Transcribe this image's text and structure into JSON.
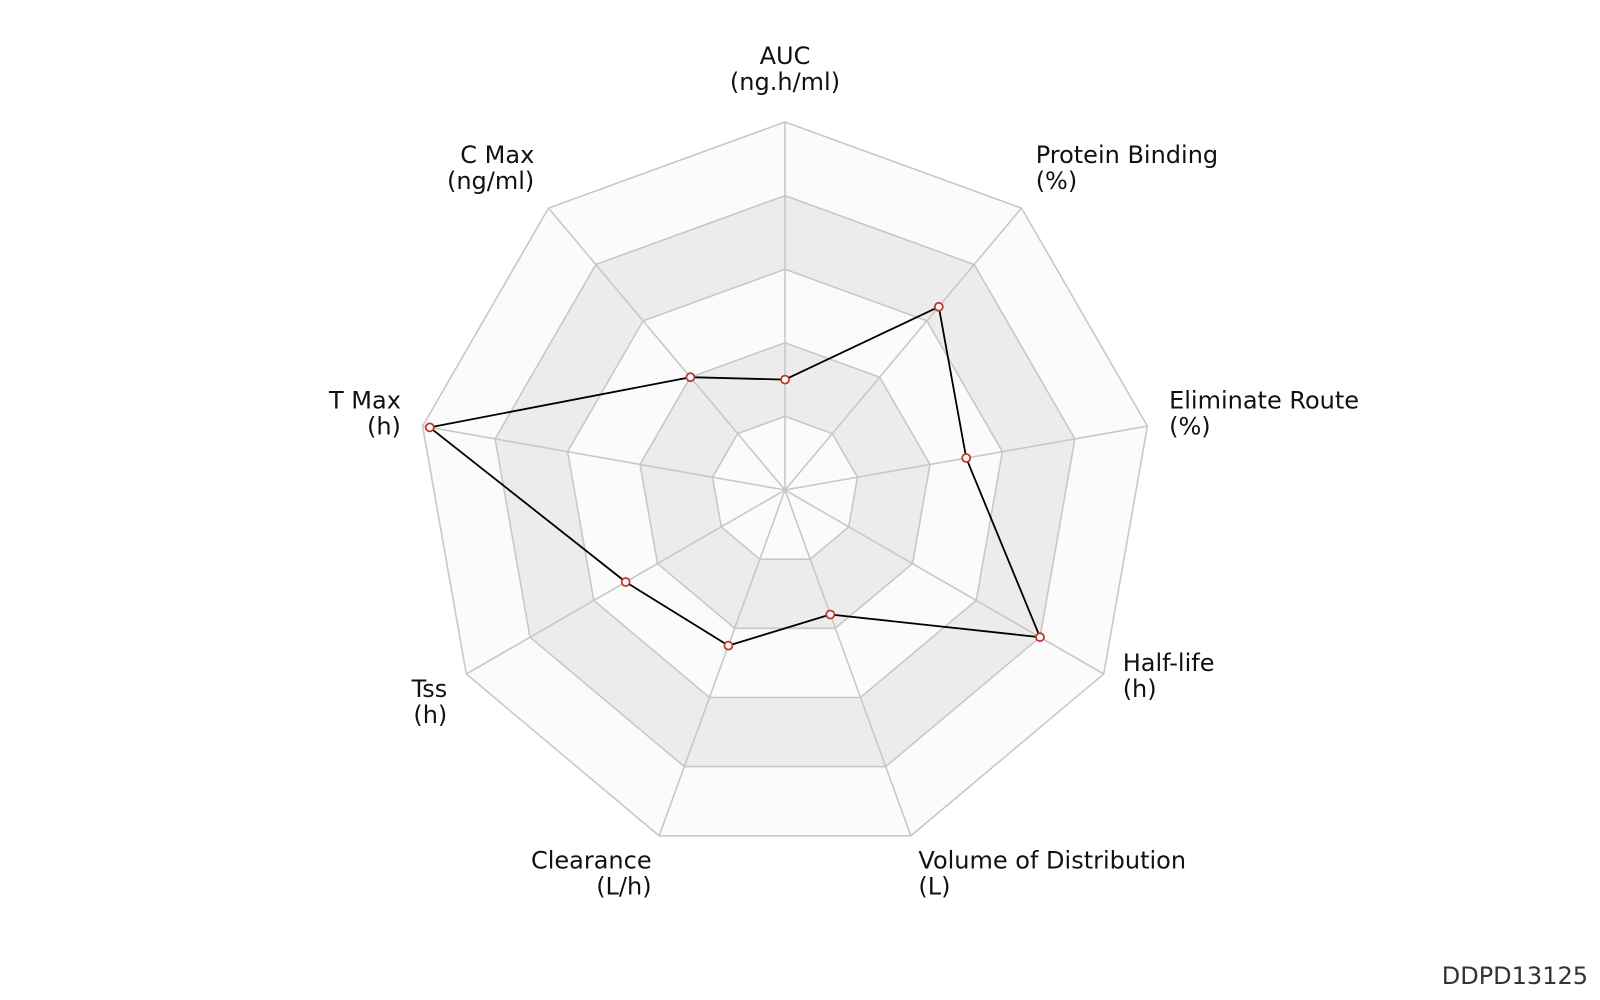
{
  "chart_data": {
    "type": "radar",
    "axes": [
      {
        "name": "AUC",
        "unit": "(ng.h/ml)",
        "value": 0.3
      },
      {
        "name": "Protein Binding",
        "unit": "(%)",
        "value": 0.65
      },
      {
        "name": "Eliminate Route",
        "unit": "(%)",
        "value": 0.5
      },
      {
        "name": "Half-life",
        "unit": "(h)",
        "value": 0.8
      },
      {
        "name": "Volume of Distribution",
        "unit": "(L)",
        "value": 0.36
      },
      {
        "name": "Clearance",
        "unit": "(L/h)",
        "value": 0.45
      },
      {
        "name": "Tss",
        "unit": "(h)",
        "value": 0.5
      },
      {
        "name": "T Max",
        "unit": "(h)",
        "value": 0.98
      },
      {
        "name": "C Max",
        "unit": "(ng/ml)",
        "value": 0.4
      }
    ],
    "range": [
      0,
      1
    ],
    "rings": 5,
    "colors": {
      "series_line": "#000000",
      "marker_stroke": "#c0392b",
      "marker_fill": "#ffffff",
      "band_shaded": "#ececec",
      "band_light": "#fbfbfb",
      "grid_line": "#c8c8c8"
    }
  },
  "watermark": "DDPD13125"
}
